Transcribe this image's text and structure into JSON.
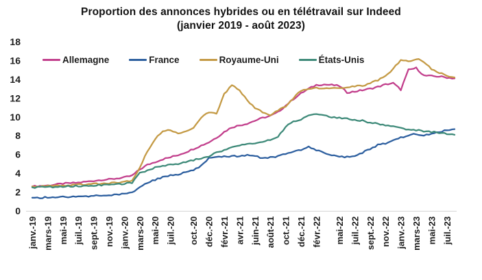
{
  "title": {
    "line1": "Proportion des annonces hybrides ou en télétravail sur Indeed",
    "line2": "(janvier 2019 - août 2023)"
  },
  "chart_data": {
    "type": "line",
    "title": "Proportion des annonces hybrides ou en télétravail sur Indeed (janvier 2019 - août 2023)",
    "x_unit": "month",
    "x_start": "2019-01",
    "x_end": "2023-08",
    "n_months": 56,
    "ylim": [
      0,
      18
    ],
    "y_ticks": [
      0,
      2,
      4,
      6,
      8,
      10,
      12,
      14,
      16,
      18
    ],
    "grid": false,
    "legend_position": "top-left",
    "x_tick_labels": [
      "janv.-19",
      "mars-19",
      "mai-19",
      "juil.-19",
      "sept.-19",
      "nov.-19",
      "janv.-20",
      "mars-20",
      "mai-20",
      "juil.-20",
      "oct.-20",
      "déc.-20",
      "févr.-21",
      "avr.-21",
      "juin-21",
      "août-21",
      "oct.-21",
      "déc.-21",
      "févr.-22",
      "mai-22",
      "juil.-22",
      "sept.-22",
      "nov.-22",
      "janv.-23",
      "mars-23",
      "mai-23",
      "juil.-23"
    ],
    "x_tick_month_index": [
      0,
      2,
      4,
      6,
      8,
      10,
      12,
      14,
      16,
      18,
      21,
      23,
      25,
      27,
      29,
      31,
      33,
      35,
      37,
      40,
      42,
      44,
      46,
      48,
      50,
      52,
      54
    ],
    "series": [
      {
        "name": "Allemagne",
        "color": "#c23f8c",
        "values": [
          2.6,
          2.65,
          2.7,
          2.8,
          2.9,
          2.95,
          3.0,
          3.1,
          3.2,
          3.3,
          3.35,
          3.45,
          3.55,
          3.75,
          4.4,
          4.9,
          5.2,
          5.5,
          5.7,
          5.95,
          6.25,
          6.6,
          6.95,
          7.3,
          7.8,
          8.4,
          8.9,
          9.1,
          9.3,
          9.6,
          9.9,
          10.1,
          10.5,
          11.2,
          11.9,
          12.5,
          13.0,
          13.4,
          13.45,
          13.4,
          13.3,
          12.6,
          12.7,
          12.85,
          13.0,
          13.2,
          13.45,
          13.6,
          12.9,
          15.0,
          15.2,
          14.4,
          14.35,
          14.3,
          14.2,
          14.1
        ]
      },
      {
        "name": "France",
        "color": "#2d5f9f",
        "values": [
          1.4,
          1.4,
          1.45,
          1.45,
          1.5,
          1.5,
          1.5,
          1.55,
          1.6,
          1.6,
          1.65,
          1.7,
          1.8,
          1.9,
          2.5,
          3.0,
          3.3,
          3.6,
          3.8,
          3.9,
          4.1,
          4.3,
          4.8,
          5.6,
          5.7,
          5.75,
          5.8,
          5.85,
          5.9,
          5.9,
          5.6,
          5.7,
          5.8,
          6.1,
          6.3,
          6.5,
          6.8,
          6.5,
          6.2,
          5.9,
          5.75,
          5.75,
          5.9,
          6.2,
          6.6,
          7.0,
          7.2,
          7.5,
          7.8,
          8.0,
          8.2,
          8.05,
          8.2,
          8.4,
          8.6,
          8.7
        ]
      },
      {
        "name": "Royaume-Uni",
        "color": "#c49a45",
        "values": [
          2.6,
          2.6,
          2.65,
          2.7,
          2.7,
          2.75,
          2.8,
          2.8,
          2.85,
          2.9,
          2.95,
          3.0,
          3.1,
          3.2,
          4.6,
          6.4,
          7.6,
          8.5,
          8.6,
          8.2,
          8.4,
          8.8,
          9.9,
          10.5,
          10.3,
          12.4,
          13.4,
          12.9,
          11.7,
          11.0,
          10.5,
          10.1,
          10.7,
          11.1,
          12.0,
          12.8,
          13.0,
          13.1,
          13.0,
          13.0,
          13.1,
          13.2,
          13.25,
          13.3,
          13.6,
          13.9,
          14.4,
          15.1,
          16.1,
          15.9,
          16.2,
          15.9,
          15.1,
          14.7,
          14.4,
          14.2
        ]
      },
      {
        "name": "États-Unis",
        "color": "#3e8a79",
        "values": [
          2.5,
          2.5,
          2.55,
          2.55,
          2.6,
          2.6,
          2.65,
          2.65,
          2.7,
          2.75,
          2.8,
          2.85,
          2.9,
          3.0,
          4.0,
          4.3,
          4.6,
          4.8,
          4.9,
          5.0,
          5.2,
          5.4,
          5.6,
          5.8,
          6.2,
          6.5,
          6.8,
          7.0,
          7.1,
          7.2,
          7.4,
          7.5,
          7.8,
          9.0,
          9.5,
          9.7,
          10.1,
          10.3,
          10.15,
          10.0,
          9.9,
          9.8,
          9.7,
          9.6,
          9.4,
          9.3,
          9.1,
          9.0,
          8.8,
          8.7,
          8.6,
          8.5,
          8.4,
          8.3,
          8.2,
          8.1
        ]
      }
    ]
  }
}
